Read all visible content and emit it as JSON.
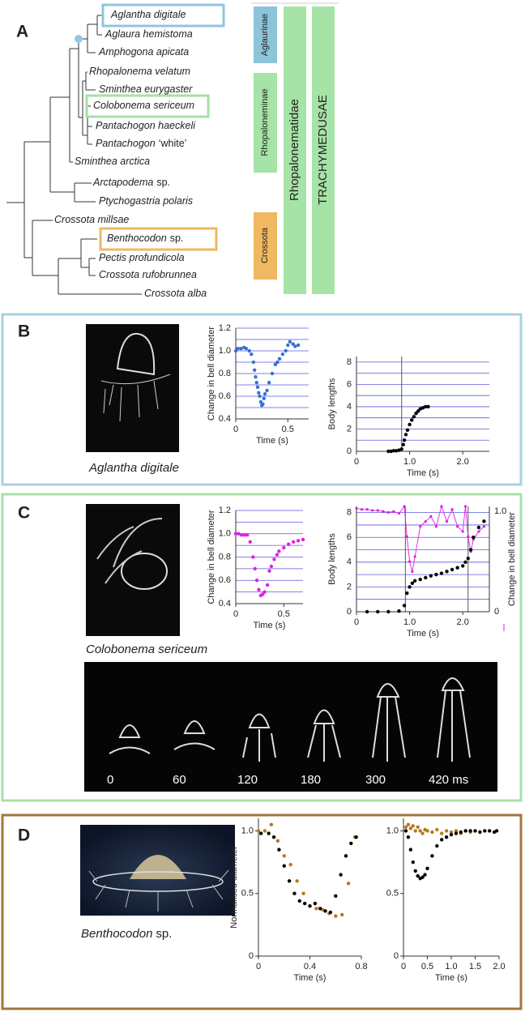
{
  "panels": {
    "a": {
      "label": "A"
    },
    "b": {
      "label": "B",
      "caption": {
        "italic": "Aglantha digitale"
      }
    },
    "c": {
      "label": "C",
      "caption": {
        "italic": "Colobonema sericeum"
      },
      "frames": [
        "0",
        "60",
        "120",
        "180",
        "300",
        "420 ms"
      ]
    },
    "d": {
      "label": "D",
      "caption": {
        "italic": "Benthocodon",
        "plain": "sp."
      }
    }
  },
  "tree": {
    "taxa": [
      {
        "italic": "Aglantha digitale"
      },
      {
        "italic": "Aglaura hemistoma"
      },
      {
        "italic": "Amphogona apicata"
      },
      {
        "italic": "Rhopalonema velatum"
      },
      {
        "italic": "Sminthea eurygaster"
      },
      {
        "italic": "Colobonema sericeum"
      },
      {
        "italic": "Pantachogon haeckeli"
      },
      {
        "italic": "Pantachogon",
        "plain": "‘white’"
      },
      {
        "italic": "Sminthea arctica"
      },
      {
        "italic": "Arctapodema",
        "plain": "sp."
      },
      {
        "italic": "Ptychogastria polaris"
      },
      {
        "italic": "Crossota millsae"
      },
      {
        "italic": "Benthocodon",
        "plain": "sp."
      },
      {
        "italic": "Pectis profundicola"
      },
      {
        "italic": "Crossota rufobrunnea"
      },
      {
        "italic": "Crossota alba"
      }
    ],
    "clades": [
      "Aglaurinae",
      "Rhopaloneminae",
      "Crossota",
      "Rhopalonematidae",
      "TRACHYMEDUSAE"
    ]
  },
  "chart_data": [
    {
      "type": "scatter",
      "xlabel": "Time (s)",
      "ylabel": "Change in bell diameter",
      "xlim": [
        0,
        0.7
      ],
      "ylim": [
        0.4,
        1.2
      ],
      "xticks": [
        0,
        0.5
      ],
      "yticks": [
        0.4,
        0.6,
        0.8,
        {
          "value": 1,
          "label": "1.0"
        },
        1.2
      ],
      "minor_yticks": [
        0.5,
        0.7,
        0.9,
        1.1
      ],
      "grid": true,
      "series": [
        {
          "color": "#3a6fd8",
          "x": [
            0,
            0.02,
            0.05,
            0.08,
            0.1,
            0.13,
            0.15,
            0.17,
            0.18,
            0.19,
            0.2,
            0.21,
            0.22,
            0.23,
            0.24,
            0.25,
            0.26,
            0.27,
            0.28,
            0.3,
            0.32,
            0.35,
            0.38,
            0.4,
            0.42,
            0.45,
            0.48,
            0.5,
            0.52,
            0.55,
            0.57,
            0.6
          ],
          "values": [
            1,
            1.02,
            1.02,
            1.03,
            1.02,
            1,
            0.97,
            0.9,
            0.83,
            0.77,
            0.72,
            0.68,
            0.63,
            0.6,
            0.55,
            0.52,
            0.53,
            0.58,
            0.62,
            0.65,
            0.72,
            0.8,
            0.88,
            0.9,
            0.93,
            0.97,
            1,
            1.05,
            1.08,
            1.06,
            1.04,
            1.05
          ]
        }
      ]
    },
    {
      "type": "scatter",
      "xlabel": "Time (s)",
      "ylabel": "Body lengths",
      "xlim": [
        0,
        2.5
      ],
      "ylim": [
        0,
        8.5
      ],
      "xticks": [
        0,
        {
          "value": 1,
          "label": "1.0"
        },
        {
          "value": 2,
          "label": "2.0"
        }
      ],
      "yticks": [
        0,
        2,
        4,
        6,
        8
      ],
      "minor_yticks": [
        1,
        3,
        5,
        7
      ],
      "grid": true,
      "vlines": [
        0.85
      ],
      "series": [
        {
          "color": "#000000",
          "x": [
            0.6,
            0.65,
            0.7,
            0.75,
            0.8,
            0.85,
            0.88,
            0.9,
            0.93,
            0.96,
            1,
            1.04,
            1.08,
            1.12,
            1.16,
            1.2,
            1.25,
            1.3,
            1.35
          ],
          "values": [
            0,
            0,
            0.05,
            0.05,
            0.1,
            0.2,
            0.6,
            1,
            1.5,
            1.9,
            2.4,
            2.8,
            3.1,
            3.4,
            3.6,
            3.8,
            3.9,
            4,
            4
          ]
        }
      ]
    },
    {
      "type": "scatter",
      "xlabel": "Time (s)",
      "ylabel": "Change in bell diameter",
      "xlim": [
        0,
        0.7
      ],
      "ylim": [
        0.4,
        1.2
      ],
      "xticks": [
        0,
        0.5
      ],
      "yticks": [
        0.4,
        0.6,
        0.8,
        {
          "value": 1,
          "label": "1.0"
        },
        1.2
      ],
      "minor_yticks": [
        0.5,
        0.7,
        0.9,
        1.1
      ],
      "grid": true,
      "series": [
        {
          "color": "#e020e0",
          "x": [
            0,
            0.03,
            0.06,
            0.09,
            0.12,
            0.15,
            0.18,
            0.2,
            0.22,
            0.24,
            0.26,
            0.28,
            0.3,
            0.33,
            0.35,
            0.37,
            0.4,
            0.43,
            0.45,
            0.5,
            0.55,
            0.6,
            0.65,
            0.7
          ],
          "values": [
            1,
            1,
            0.99,
            0.99,
            0.99,
            0.93,
            0.8,
            0.7,
            0.6,
            0.52,
            0.47,
            0.48,
            0.5,
            0.56,
            0.68,
            0.72,
            0.78,
            0.82,
            0.85,
            0.88,
            0.91,
            0.93,
            0.94,
            0.95
          ]
        }
      ]
    },
    {
      "type": "scatter",
      "xlabel": "Time (s)",
      "ylabel": "Body lengths",
      "y2label": "Change in bell diameter",
      "xlim": [
        0,
        2.5
      ],
      "ylim": [
        0,
        8.5
      ],
      "y2lim": [
        0,
        1.05
      ],
      "xticks": [
        0,
        {
          "value": 1,
          "label": "1.0"
        },
        {
          "value": 2,
          "label": "2.0"
        }
      ],
      "yticks": [
        0,
        2,
        4,
        6,
        8
      ],
      "minor_yticks": [
        1,
        3,
        5,
        7
      ],
      "y2ticks": [
        0,
        {
          "value": 1,
          "label": "1.0"
        }
      ],
      "grid": true,
      "vlines": [
        0.92,
        2.1
      ],
      "series": [
        {
          "color": "#e020e0",
          "axis": "y2",
          "line": true,
          "x": [
            0,
            0.1,
            0.2,
            0.3,
            0.4,
            0.5,
            0.6,
            0.7,
            0.8,
            0.9,
            0.95,
            1,
            1.05,
            1.1,
            1.2,
            1.3,
            1.4,
            1.5,
            1.6,
            1.7,
            1.8,
            1.9,
            2,
            2.05,
            2.1,
            2.15,
            2.2,
            2.3,
            2.4
          ],
          "values": [
            1.03,
            1.02,
            1.02,
            1.01,
            1.01,
            1,
            0.99,
            1,
            0.98,
            1.05,
            0.75,
            0.5,
            0.4,
            0.55,
            0.85,
            0.9,
            0.95,
            0.85,
            1.05,
            0.9,
            1.02,
            0.85,
            0.8,
            1.05,
            0.75,
            0.6,
            0.72,
            0.8,
            0.85
          ]
        },
        {
          "color": "#000000",
          "x": [
            0.2,
            0.4,
            0.6,
            0.8,
            0.9,
            0.95,
            1,
            1.05,
            1.1,
            1.2,
            1.3,
            1.4,
            1.5,
            1.6,
            1.7,
            1.8,
            1.9,
            2,
            2.05,
            2.1,
            2.15,
            2.2,
            2.3,
            2.4
          ],
          "values": [
            0,
            0,
            0,
            0.05,
            0.5,
            1.5,
            2,
            2.3,
            2.5,
            2.6,
            2.75,
            2.9,
            3,
            3.1,
            3.25,
            3.4,
            3.55,
            3.7,
            4,
            4.3,
            5,
            6,
            6.8,
            7.3
          ]
        }
      ]
    },
    {
      "type": "scatter",
      "xlabel": "Time (s)",
      "ylabel": "Normalised diameter",
      "xlim": [
        0,
        0.8
      ],
      "ylim": [
        0,
        1.1
      ],
      "xticks": [
        0,
        0.4,
        0.8
      ],
      "yticks": [
        0,
        0.5,
        {
          "value": 1,
          "label": "1.0"
        }
      ],
      "grid": false,
      "series": [
        {
          "color": "#b57a1e",
          "x": [
            0,
            0.05,
            0.1,
            0.15,
            0.2,
            0.25,
            0.3,
            0.35,
            0.4,
            0.45,
            0.5,
            0.55,
            0.6,
            0.65,
            0.7,
            0.75
          ],
          "values": [
            1,
            1,
            1.05,
            0.92,
            0.8,
            0.73,
            0.6,
            0.5,
            0.4,
            0.38,
            0.37,
            0.34,
            0.32,
            0.33,
            0.58,
            0.95
          ]
        },
        {
          "color": "#000000",
          "x": [
            0.02,
            0.08,
            0.12,
            0.16,
            0.2,
            0.24,
            0.28,
            0.32,
            0.36,
            0.4,
            0.44,
            0.48,
            0.52,
            0.56,
            0.6,
            0.64,
            0.68,
            0.72,
            0.76
          ],
          "values": [
            0.98,
            0.98,
            0.95,
            0.85,
            0.72,
            0.6,
            0.5,
            0.44,
            0.42,
            0.4,
            0.42,
            0.38,
            0.36,
            0.35,
            0.48,
            0.65,
            0.8,
            0.9,
            0.95
          ]
        }
      ]
    },
    {
      "type": "scatter",
      "xlabel": "Time (s)",
      "xlim": [
        0,
        2
      ],
      "ylim": [
        0,
        1.1
      ],
      "xticks": [
        0,
        0.5,
        {
          "value": 1,
          "label": "1.0"
        },
        1.5,
        {
          "value": 2,
          "label": "2.0"
        }
      ],
      "yticks": [
        0,
        0.5,
        {
          "value": 1,
          "label": "1.0"
        }
      ],
      "grid": false,
      "series": [
        {
          "color": "#b57a1e",
          "x": [
            0.05,
            0.1,
            0.15,
            0.2,
            0.25,
            0.3,
            0.35,
            0.4,
            0.45,
            0.5,
            0.6,
            0.7,
            0.8,
            0.9,
            1,
            1.1,
            1.2,
            1.3,
            1.4
          ],
          "values": [
            1.03,
            1.05,
            1.02,
            1.04,
            1,
            1.03,
            1,
            0.98,
            1.01,
            1,
            0.99,
            1.01,
            0.98,
            1,
            0.99,
            1,
            0.98,
            1,
            0.99
          ]
        },
        {
          "color": "#000000",
          "x": [
            0.05,
            0.1,
            0.15,
            0.2,
            0.25,
            0.3,
            0.35,
            0.4,
            0.45,
            0.5,
            0.6,
            0.7,
            0.8,
            0.9,
            1,
            1.1,
            1.2,
            1.3,
            1.4,
            1.5,
            1.6,
            1.7,
            1.8,
            1.9,
            1.95
          ],
          "values": [
            1,
            0.95,
            0.85,
            0.75,
            0.68,
            0.64,
            0.62,
            0.63,
            0.65,
            0.7,
            0.8,
            0.88,
            0.93,
            0.95,
            0.97,
            0.98,
            0.99,
            1,
            1,
            1,
            0.99,
            1,
            1,
            0.99,
            1
          ]
        }
      ]
    }
  ]
}
